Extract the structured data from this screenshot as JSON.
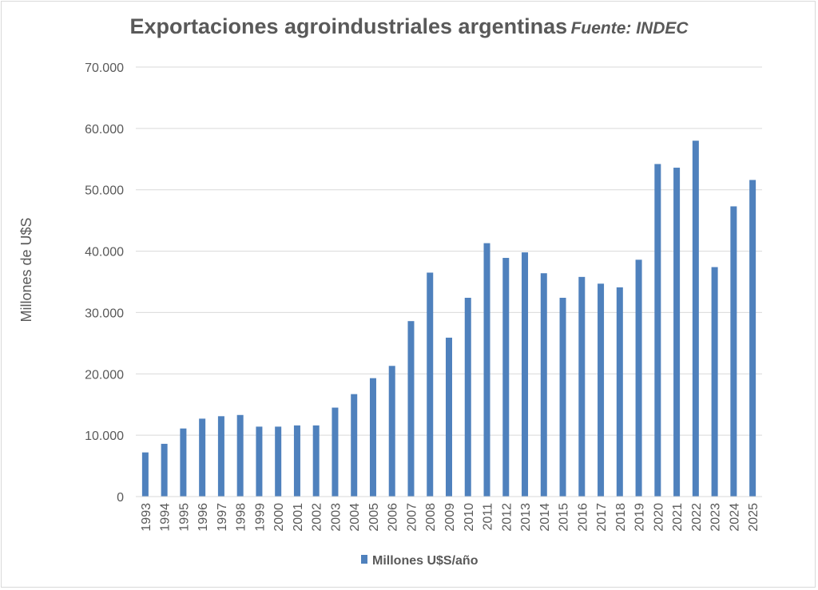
{
  "chart_data": {
    "type": "bar",
    "title": "Exportaciones agroindustriales argentinas",
    "source": "Fuente: INDEC",
    "xlabel": "",
    "ylabel": "Millones de U$S",
    "ylim": [
      0,
      70000
    ],
    "yticks": [
      0,
      10000,
      20000,
      30000,
      40000,
      50000,
      60000,
      70000
    ],
    "ytick_labels": [
      "0",
      "10.000",
      "20.000",
      "30.000",
      "40.000",
      "50.000",
      "60.000",
      "70.000"
    ],
    "grid": true,
    "legend": "bottom",
    "bar_color": "#4f81bd",
    "categories": [
      "1993",
      "1994",
      "1995",
      "1996",
      "1997",
      "1998",
      "1999",
      "2000",
      "2001",
      "2002",
      "2003",
      "2004",
      "2005",
      "2006",
      "2007",
      "2008",
      "2009",
      "2010",
      "2011",
      "2012",
      "2013",
      "2014",
      "2015",
      "2016",
      "2017",
      "2018",
      "2019",
      "2020",
      "2021",
      "2022",
      "2023",
      "2024",
      "2025"
    ],
    "series": [
      {
        "name": "Millones U$S/año",
        "values": [
          7200,
          8600,
          11100,
          12700,
          13100,
          13300,
          11400,
          11400,
          11600,
          11600,
          14500,
          16700,
          19300,
          21300,
          28600,
          36500,
          25900,
          32400,
          41300,
          38900,
          39800,
          36400,
          32400,
          35800,
          34700,
          34100,
          38600,
          54200,
          53600,
          58000,
          37400,
          47300,
          51600
        ]
      }
    ]
  }
}
